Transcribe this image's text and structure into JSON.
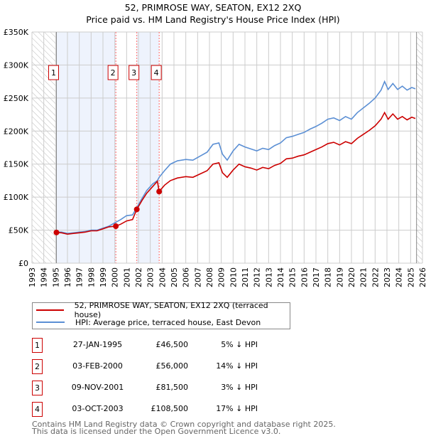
{
  "chart_data": {
    "type": "line",
    "title": "52, PRIMROSE WAY, SEATON, EX12 2XQ",
    "subtitle": "Price paid vs. HM Land Registry's House Price Index (HPI)",
    "xlim": [
      1993,
      2026
    ],
    "ylim": [
      0,
      350000
    ],
    "yticks": [
      {
        "v": 0,
        "label": "£0"
      },
      {
        "v": 50000,
        "label": "£50K"
      },
      {
        "v": 100000,
        "label": "£100K"
      },
      {
        "v": 150000,
        "label": "£150K"
      },
      {
        "v": 200000,
        "label": "£200K"
      },
      {
        "v": 250000,
        "label": "£250K"
      },
      {
        "v": 300000,
        "label": "£300K"
      },
      {
        "v": 350000,
        "label": "£350K"
      }
    ],
    "xticks": [
      "1993",
      "1994",
      "1995",
      "1996",
      "1997",
      "1998",
      "1999",
      "2000",
      "2001",
      "2002",
      "2003",
      "2004",
      "2005",
      "2006",
      "2007",
      "2008",
      "2009",
      "2010",
      "2011",
      "2012",
      "2013",
      "2014",
      "2015",
      "2016",
      "2017",
      "2018",
      "2019",
      "2020",
      "2021",
      "2022",
      "2023",
      "2024",
      "2025",
      "2026"
    ],
    "grid": true,
    "hatched_ranges": [
      [
        1993,
        1995.07
      ],
      [
        2025.5,
        2026
      ]
    ],
    "shaded_ranges": [
      [
        1995.07,
        2000.09
      ],
      [
        2001.86,
        2003.75
      ]
    ],
    "x": [
      1995.07,
      1995.5,
      1996,
      1996.5,
      1997,
      1997.5,
      1998,
      1998.5,
      1999,
      1999.5,
      2000.09,
      2000.5,
      2001,
      2001.5,
      2001.86,
      2002.3,
      2002.7,
      2003.2,
      2003.6,
      2003.75,
      2004.2,
      2004.7,
      2005.3,
      2006,
      2006.6,
      2007.2,
      2007.8,
      2008.3,
      2008.8,
      2009.1,
      2009.5,
      2010,
      2010.5,
      2011,
      2011.5,
      2012,
      2012.5,
      2013,
      2013.5,
      2014,
      2014.5,
      2015,
      2015.5,
      2016,
      2016.5,
      2017,
      2017.5,
      2018,
      2018.5,
      2019,
      2019.5,
      2020,
      2020.5,
      2021,
      2021.5,
      2022,
      2022.5,
      2022.8,
      2023.1,
      2023.5,
      2023.9,
      2024.3,
      2024.7,
      2025.1,
      2025.4
    ],
    "series": [
      {
        "name": "52, PRIMROSE WAY, SEATON, EX12 2XQ (terraced house)",
        "color": "#cc0000",
        "values": [
          46500,
          46000,
          44000,
          45000,
          46000,
          47000,
          49000,
          49000,
          52000,
          55000,
          56000,
          59000,
          64000,
          66000,
          81500,
          95000,
          106000,
          116000,
          124000,
          108500,
          118000,
          125000,
          129000,
          131000,
          130000,
          135000,
          140000,
          150000,
          152000,
          137000,
          130000,
          141000,
          150000,
          146000,
          144000,
          141000,
          145000,
          143000,
          148000,
          151000,
          158000,
          159000,
          162000,
          164000,
          168000,
          172000,
          176000,
          181000,
          183000,
          179000,
          184000,
          181000,
          189000,
          195000,
          201000,
          208000,
          218000,
          228000,
          218000,
          226000,
          218000,
          222000,
          217000,
          221000,
          219000
        ]
      },
      {
        "name": "HPI: Average price, terraced house, East Devon",
        "color": "#5b8fd4",
        "values": [
          47000,
          47000,
          45000,
          46000,
          47000,
          48000,
          50000,
          50000,
          53000,
          56000,
          62000,
          66000,
          72000,
          73000,
          84000,
          98000,
          110000,
          120000,
          125000,
          130000,
          140000,
          150000,
          155000,
          157000,
          156000,
          162000,
          168000,
          180000,
          182000,
          165000,
          156000,
          170000,
          180000,
          176000,
          173000,
          170000,
          174000,
          172000,
          178000,
          182000,
          190000,
          192000,
          195000,
          198000,
          203000,
          207000,
          212000,
          218000,
          220000,
          216000,
          222000,
          218000,
          228000,
          235000,
          242000,
          250000,
          262000,
          275000,
          263000,
          272000,
          263000,
          268000,
          262000,
          266000,
          264000
        ]
      }
    ],
    "sales": [
      {
        "n": "1",
        "x": 1995.07,
        "price": 46500
      },
      {
        "n": "2",
        "x": 2000.09,
        "price": 56000
      },
      {
        "n": "3",
        "x": 2001.86,
        "price": 81500
      },
      {
        "n": "4",
        "x": 2003.75,
        "price": 108500
      }
    ]
  },
  "title": {
    "line1": "52, PRIMROSE WAY, SEATON, EX12 2XQ",
    "line2": "Price paid vs. HM Land Registry's House Price Index (HPI)"
  },
  "legend": {
    "property": "52, PRIMROSE WAY, SEATON, EX12 2XQ (terraced house)",
    "hpi": "HPI: Average price, terraced house, East Devon"
  },
  "transactions": [
    {
      "n": "1",
      "date": "27-JAN-1995",
      "price": "£46,500",
      "hpi": "5% ↓ HPI"
    },
    {
      "n": "2",
      "date": "03-FEB-2000",
      "price": "£56,000",
      "hpi": "14% ↓ HPI"
    },
    {
      "n": "3",
      "date": "09-NOV-2001",
      "price": "£81,500",
      "hpi": "3% ↓ HPI"
    },
    {
      "n": "4",
      "date": "03-OCT-2003",
      "price": "£108,500",
      "hpi": "17% ↓ HPI"
    }
  ],
  "footer": {
    "line1": "Contains HM Land Registry data © Crown copyright and database right 2025.",
    "line2": "This data is licensed under the Open Government Licence v3.0."
  }
}
